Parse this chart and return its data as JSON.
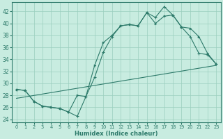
{
  "xlabel": "Humidex (Indice chaleur)",
  "background_color": "#c8ece0",
  "grid_color": "#9bcfbe",
  "line_color": "#2d7a6a",
  "xlim": [
    -0.5,
    23.5
  ],
  "ylim": [
    23.5,
    43.5
  ],
  "yticks": [
    24,
    26,
    28,
    30,
    32,
    34,
    36,
    38,
    40,
    42
  ],
  "xticks": [
    0,
    1,
    2,
    3,
    4,
    5,
    6,
    7,
    8,
    9,
    10,
    11,
    12,
    13,
    14,
    15,
    16,
    17,
    18,
    19,
    20,
    21,
    22,
    23
  ],
  "line1_x": [
    0,
    1,
    2,
    3,
    4,
    5,
    6,
    7,
    8,
    9,
    10,
    11,
    12,
    13,
    14,
    15,
    16,
    17,
    18,
    19,
    20,
    21,
    22,
    23
  ],
  "line1_y": [
    29.0,
    28.8,
    27.0,
    26.2,
    26.0,
    25.8,
    25.2,
    24.5,
    27.8,
    31.0,
    35.2,
    37.8,
    39.6,
    39.8,
    39.6,
    41.8,
    41.0,
    42.8,
    41.4,
    39.4,
    37.8,
    35.0,
    34.8,
    33.2
  ],
  "line2_x": [
    0,
    1,
    2,
    3,
    4,
    5,
    6,
    7,
    8,
    9,
    10,
    11,
    12,
    13,
    14,
    15,
    16,
    17,
    18,
    19,
    20,
    21,
    22,
    23
  ],
  "line2_y": [
    29.0,
    28.8,
    27.0,
    26.2,
    26.0,
    25.8,
    25.2,
    28.0,
    27.8,
    33.0,
    36.8,
    38.0,
    39.6,
    39.8,
    39.6,
    41.8,
    40.0,
    41.2,
    41.4,
    39.4,
    39.2,
    37.8,
    35.0,
    33.2
  ],
  "line3_x": [
    0,
    23
  ],
  "line3_y": [
    27.5,
    33.0
  ]
}
